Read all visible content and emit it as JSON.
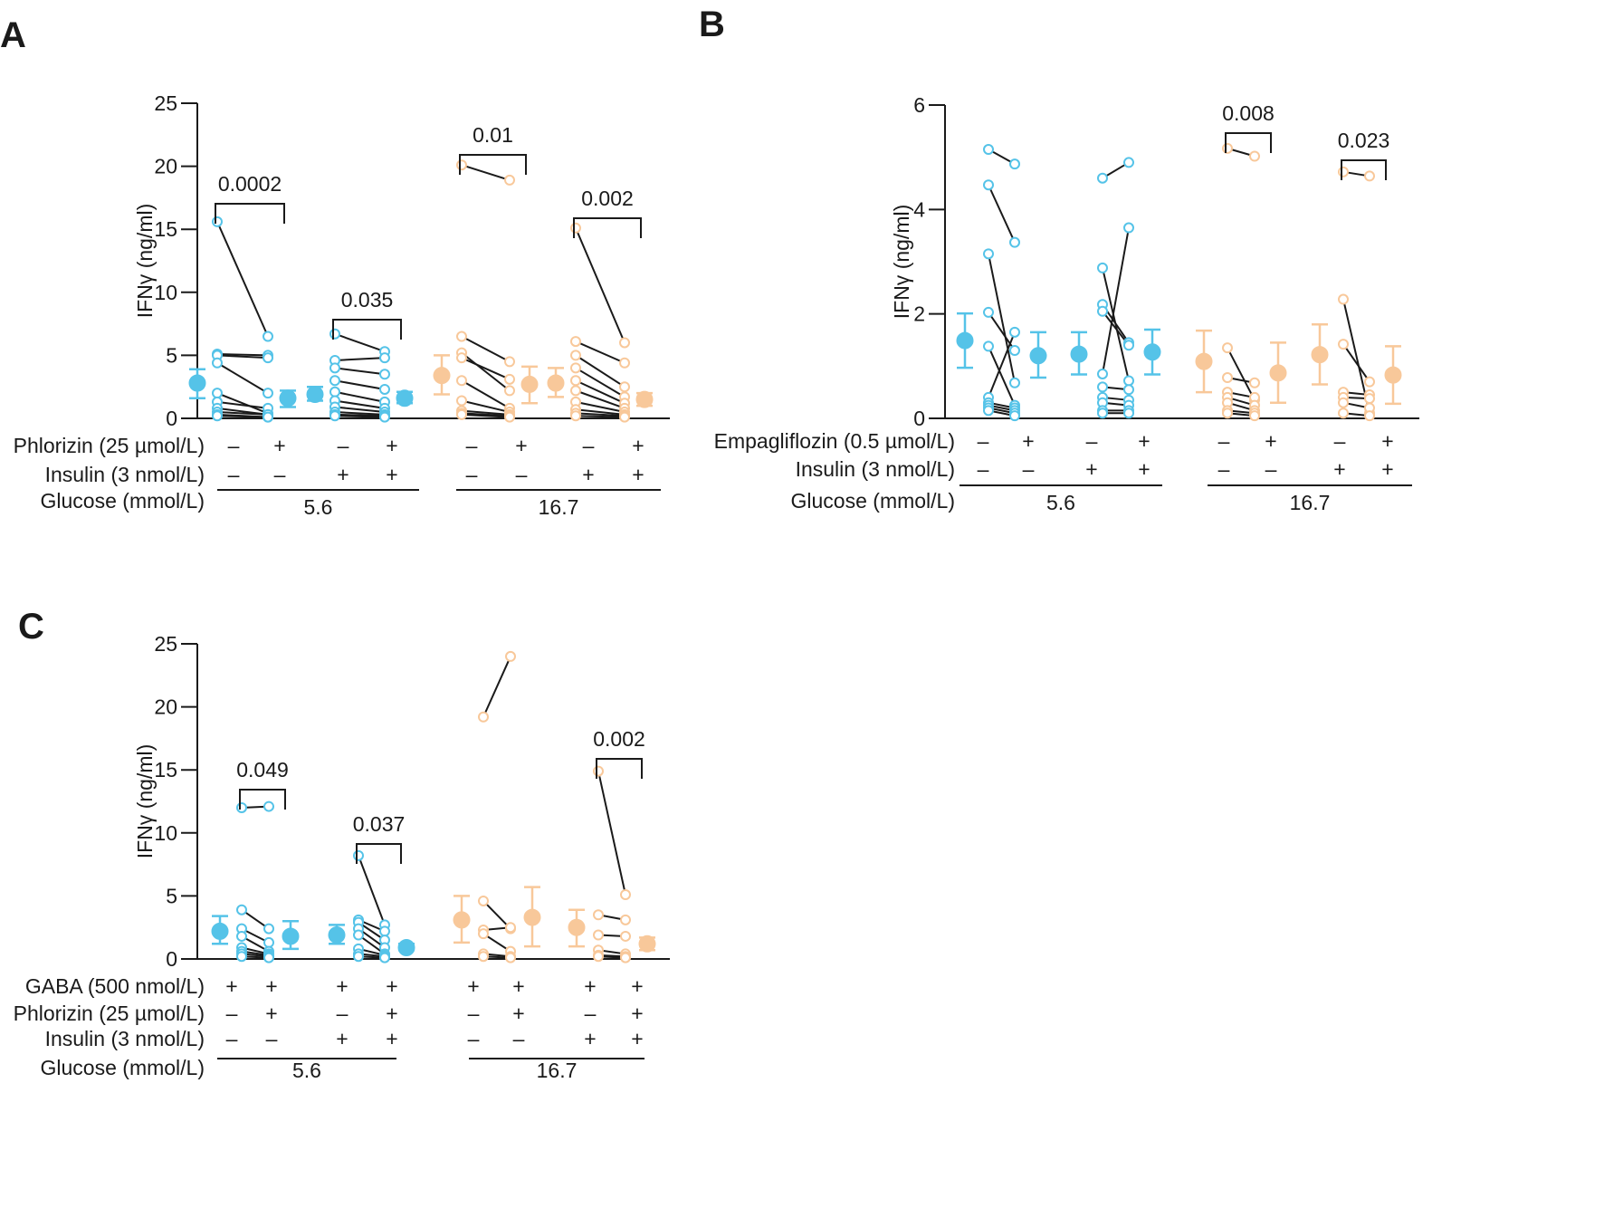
{
  "colors": {
    "blue": "#55c3e8",
    "orange": "#f8c89a",
    "line": "#1a1a1a"
  },
  "chart_data": [
    {
      "type": "scatter",
      "panel": "A",
      "ylabel": "IFNγ (ng/ml)",
      "ylim": [
        0,
        25
      ],
      "yticks": [
        "0",
        "5",
        "10",
        "15",
        "20",
        "25"
      ],
      "row_labels": [
        "Phlorizin (25 µmol/L)",
        "Insulin (3 nmol/L)",
        "Glucose (mmol/L)"
      ],
      "groups": [
        {
          "glucose": "5.6",
          "pairs": [
            {
              "treatment": [
                "–",
                "+"
              ],
              "insulin": [
                "–",
                "–"
              ],
              "color": "blue",
              "mean_before": [
                2.8,
                1.6,
                3.9
              ],
              "mean_after": [
                1.6,
                0.9,
                2.2
              ],
              "values": [
                [
                  15.6,
                  6.5
                ],
                [
                  5.1,
                  5.0
                ],
                [
                  5.0,
                  4.8
                ],
                [
                  4.4,
                  2.0
                ],
                [
                  2.0,
                  0.4
                ],
                [
                  1.3,
                  0.8
                ],
                [
                  0.8,
                  0.3
                ],
                [
                  0.5,
                  0.3
                ],
                [
                  0.3,
                  0.1
                ],
                [
                  0.2,
                  0.1
                ]
              ],
              "p": "0.0002"
            },
            {
              "treatment": [
                "–",
                "+"
              ],
              "insulin": [
                "+",
                "+"
              ],
              "color": "blue",
              "mean_before": [
                1.9,
                1.4,
                2.5
              ],
              "mean_after": [
                1.6,
                1.2,
                2.1
              ],
              "values": [
                [
                  6.7,
                  5.3
                ],
                [
                  4.6,
                  4.8
                ],
                [
                  4.0,
                  3.5
                ],
                [
                  3.0,
                  2.3
                ],
                [
                  2.1,
                  1.3
                ],
                [
                  1.4,
                  0.8
                ],
                [
                  0.9,
                  0.5
                ],
                [
                  0.5,
                  0.3
                ],
                [
                  0.3,
                  0.2
                ],
                [
                  0.2,
                  0.1
                ]
              ],
              "p": "0.035"
            }
          ]
        },
        {
          "glucose": "16.7",
          "pairs": [
            {
              "treatment": [
                "–",
                "+"
              ],
              "insulin": [
                "–",
                "–"
              ],
              "color": "orange",
              "mean_before": [
                3.4,
                1.9,
                5.0
              ],
              "mean_after": [
                2.7,
                1.2,
                4.1
              ],
              "values": [
                [
                  20.1,
                  18.9
                ],
                [
                  6.5,
                  4.5
                ],
                [
                  5.2,
                  2.2
                ],
                [
                  4.8,
                  3.1
                ],
                [
                  3.0,
                  0.8
                ],
                [
                  1.4,
                  0.5
                ],
                [
                  0.6,
                  0.3
                ],
                [
                  0.4,
                  0.2
                ],
                [
                  0.3,
                  0.1
                ]
              ],
              "p": "0.01"
            },
            {
              "treatment": [
                "–",
                "+"
              ],
              "insulin": [
                "+",
                "+"
              ],
              "color": "orange",
              "mean_before": [
                2.8,
                1.7,
                4.0
              ],
              "mean_after": [
                1.5,
                1.0,
                2.0
              ],
              "values": [
                [
                  15.1,
                  6.0
                ],
                [
                  6.1,
                  4.4
                ],
                [
                  5.0,
                  2.5
                ],
                [
                  4.0,
                  1.7
                ],
                [
                  3.0,
                  1.2
                ],
                [
                  2.2,
                  0.8
                ],
                [
                  1.3,
                  0.5
                ],
                [
                  0.7,
                  0.3
                ],
                [
                  0.4,
                  0.2
                ],
                [
                  0.2,
                  0.1
                ]
              ],
              "p": "0.002"
            }
          ]
        }
      ]
    },
    {
      "type": "scatter",
      "panel": "B",
      "ylabel": "IFNγ (ng/ml)",
      "ylim": [
        0,
        6
      ],
      "yticks": [
        "0",
        "2",
        "4",
        "6"
      ],
      "row_labels": [
        "Empagliflozin (0.5 µmol/L)",
        "Insulin (3 nmol/L)",
        "Glucose (mmol/L)"
      ],
      "groups": [
        {
          "glucose": "5.6",
          "pairs": [
            {
              "treatment": [
                "–",
                "+"
              ],
              "insulin": [
                "–",
                "–"
              ],
              "color": "blue",
              "mean_before": [
                1.49,
                0.97,
                2.01
              ],
              "mean_after": [
                1.2,
                0.78,
                1.65
              ],
              "values": [
                [
                  5.15,
                  4.87
                ],
                [
                  4.47,
                  3.37
                ],
                [
                  3.15,
                  0.68
                ],
                [
                  2.03,
                  1.3
                ],
                [
                  1.38,
                  0.25
                ],
                [
                  0.4,
                  1.65
                ],
                [
                  0.3,
                  0.2
                ],
                [
                  0.25,
                  0.15
                ],
                [
                  0.2,
                  0.1
                ],
                [
                  0.15,
                  0.05
                ]
              ],
              "p": ""
            },
            {
              "treatment": [
                "–",
                "+"
              ],
              "insulin": [
                "+",
                "+"
              ],
              "color": "blue",
              "mean_before": [
                1.23,
                0.84,
                1.65
              ],
              "mean_after": [
                1.27,
                0.84,
                1.7
              ],
              "values": [
                [
                  4.6,
                  4.9
                ],
                [
                  2.88,
                  0.72
                ],
                [
                  2.18,
                  1.45
                ],
                [
                  2.05,
                  1.4
                ],
                [
                  0.85,
                  3.65
                ],
                [
                  0.6,
                  0.55
                ],
                [
                  0.4,
                  0.35
                ],
                [
                  0.3,
                  0.25
                ],
                [
                  0.15,
                  0.15
                ],
                [
                  0.1,
                  0.1
                ]
              ],
              "p": ""
            }
          ]
        },
        {
          "glucose": "16.7",
          "pairs": [
            {
              "treatment": [
                "–",
                "+"
              ],
              "insulin": [
                "–",
                "–"
              ],
              "color": "orange",
              "mean_before": [
                1.09,
                0.5,
                1.68
              ],
              "mean_after": [
                0.87,
                0.3,
                1.45
              ],
              "values": [
                [
                  5.17,
                  5.02
                ],
                [
                  1.35,
                  0.35
                ],
                [
                  0.78,
                  0.68
                ],
                [
                  0.5,
                  0.4
                ],
                [
                  0.4,
                  0.25
                ],
                [
                  0.3,
                  0.15
                ],
                [
                  0.15,
                  0.1
                ],
                [
                  0.1,
                  0.05
                ]
              ],
              "p": "0.008"
            },
            {
              "treatment": [
                "–",
                "+"
              ],
              "insulin": [
                "+",
                "+"
              ],
              "color": "orange",
              "mean_before": [
                1.22,
                0.65,
                1.8
              ],
              "mean_after": [
                0.83,
                0.28,
                1.38
              ],
              "values": [
                [
                  4.72,
                  4.64
                ],
                [
                  2.28,
                  0.1
                ],
                [
                  1.42,
                  0.7
                ],
                [
                  0.5,
                  0.45
                ],
                [
                  0.4,
                  0.38
                ],
                [
                  0.3,
                  0.2
                ],
                [
                  0.1,
                  0.05
                ]
              ],
              "p": "0.023"
            }
          ]
        }
      ]
    },
    {
      "type": "scatter",
      "panel": "C",
      "ylabel": "IFNγ (ng/ml)",
      "ylim": [
        0,
        25
      ],
      "yticks": [
        "0",
        "5",
        "10",
        "15",
        "20",
        "25"
      ],
      "row_labels": [
        "GABA (500 nmol/L)",
        "Phlorizin (25 µmol/L)",
        "Insulin (3 nmol/L)",
        "Glucose (mmol/L)"
      ],
      "groups": [
        {
          "glucose": "5.6",
          "pairs": [
            {
              "treatment": [
                "–",
                "+"
              ],
              "gaba": [
                "+",
                "+"
              ],
              "insulin": [
                "–",
                "–"
              ],
              "color": "blue",
              "mean_before": [
                2.2,
                1.2,
                3.4
              ],
              "mean_after": [
                1.8,
                0.8,
                3.0
              ],
              "values": [
                [
                  12.0,
                  12.1
                ],
                [
                  3.9,
                  2.4
                ],
                [
                  2.4,
                  1.3
                ],
                [
                  1.8,
                  0.6
                ],
                [
                  0.9,
                  0.4
                ],
                [
                  0.6,
                  0.3
                ],
                [
                  0.4,
                  0.2
                ],
                [
                  0.2,
                  0.1
                ]
              ],
              "p": "0.049"
            },
            {
              "treatment": [
                "–",
                "+"
              ],
              "gaba": [
                "+",
                "+"
              ],
              "insulin": [
                "+",
                "+"
              ],
              "color": "blue",
              "mean_before": [
                1.9,
                1.2,
                2.7
              ],
              "mean_after": [
                0.9,
                0.7,
                1.2
              ],
              "values": [
                [
                  8.2,
                  2.7
                ],
                [
                  3.1,
                  2.2
                ],
                [
                  2.9,
                  1.5
                ],
                [
                  2.4,
                  0.9
                ],
                [
                  1.9,
                  0.4
                ],
                [
                  0.8,
                  0.3
                ],
                [
                  0.4,
                  0.2
                ],
                [
                  0.2,
                  0.1
                ]
              ],
              "p": "0.037"
            }
          ]
        },
        {
          "glucose": "16.7",
          "pairs": [
            {
              "treatment": [
                "–",
                "+"
              ],
              "gaba": [
                "+",
                "+"
              ],
              "insulin": [
                "–",
                "–"
              ],
              "color": "orange",
              "mean_before": [
                3.1,
                1.3,
                5.0
              ],
              "mean_after": [
                3.3,
                1.0,
                5.7
              ],
              "values": [
                [
                  19.2,
                  24.0
                ],
                [
                  4.6,
                  2.4
                ],
                [
                  2.3,
                  2.5
                ],
                [
                  2.0,
                  0.6
                ],
                [
                  0.4,
                  0.2
                ],
                [
                  0.2,
                  0.1
                ]
              ],
              "p": ""
            },
            {
              "treatment": [
                "–",
                "+"
              ],
              "gaba": [
                "+",
                "+"
              ],
              "insulin": [
                "+",
                "+"
              ],
              "color": "orange",
              "mean_before": [
                2.5,
                1.0,
                3.9
              ],
              "mean_after": [
                1.2,
                0.7,
                1.7
              ],
              "values": [
                [
                  14.9,
                  5.1
                ],
                [
                  3.5,
                  3.1
                ],
                [
                  1.9,
                  1.8
                ],
                [
                  0.7,
                  0.4
                ],
                [
                  0.3,
                  0.2
                ],
                [
                  0.2,
                  0.1
                ]
              ],
              "p": "0.002"
            }
          ]
        }
      ]
    }
  ]
}
